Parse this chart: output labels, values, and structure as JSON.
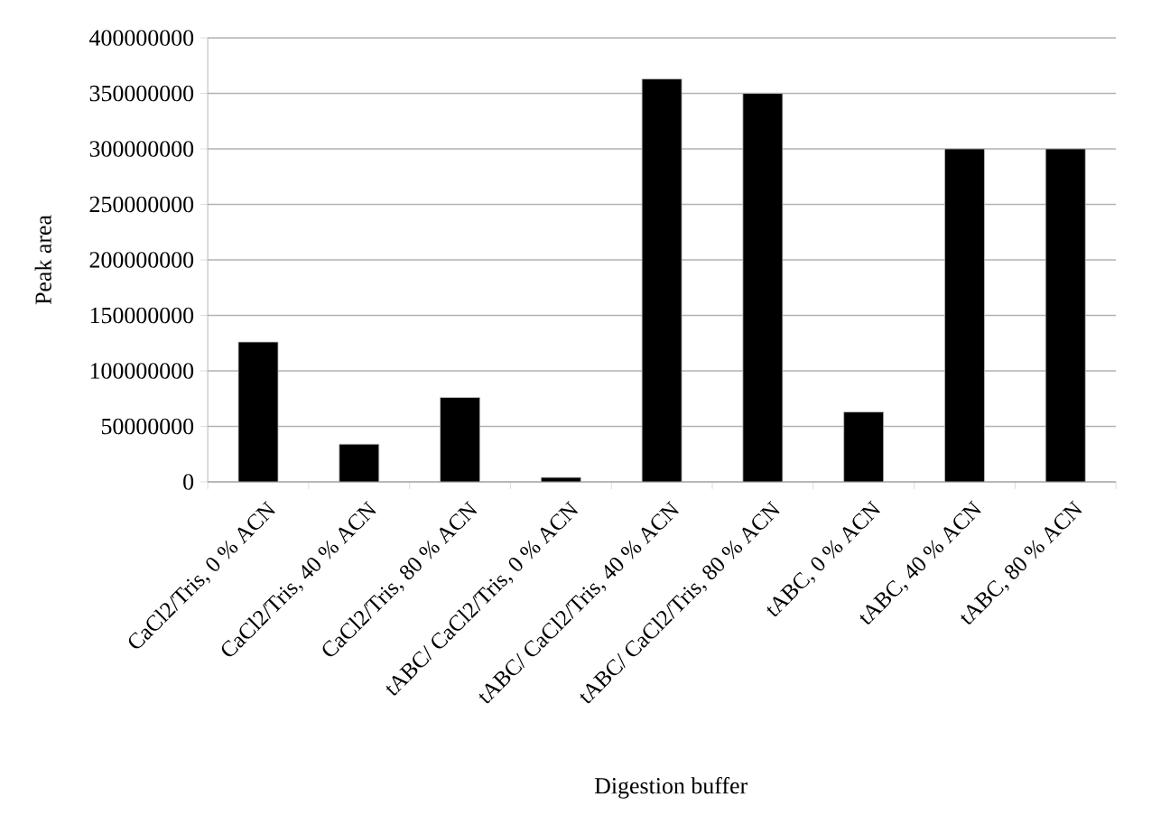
{
  "chart_data": {
    "type": "bar",
    "xlabel": "Digestion buffer",
    "ylabel": "Peak area",
    "categories": [
      "CaCl2/Tris, 0 % ACN",
      "CaCl2/Tris, 40 % ACN",
      "CaCl2/Tris, 80 % ACN",
      "tABC/ CaCl2/Tris, 0 % ACN",
      "tABC/ CaCl2/Tris, 40 % ACN",
      "tABC/ CaCl2/Tris, 80 % ACN",
      "tABC, 0 % ACN",
      "tABC, 40 % ACN",
      "tABC, 80 % ACN"
    ],
    "values": [
      126000000,
      34000000,
      76000000,
      4000000,
      363000000,
      350000000,
      63000000,
      300000000,
      300000000
    ],
    "color": "#000000",
    "ylim": [
      0,
      400000000
    ],
    "yticks": [
      0,
      50000000,
      100000000,
      150000000,
      200000000,
      250000000,
      300000000,
      350000000,
      400000000
    ],
    "grid": "y"
  }
}
